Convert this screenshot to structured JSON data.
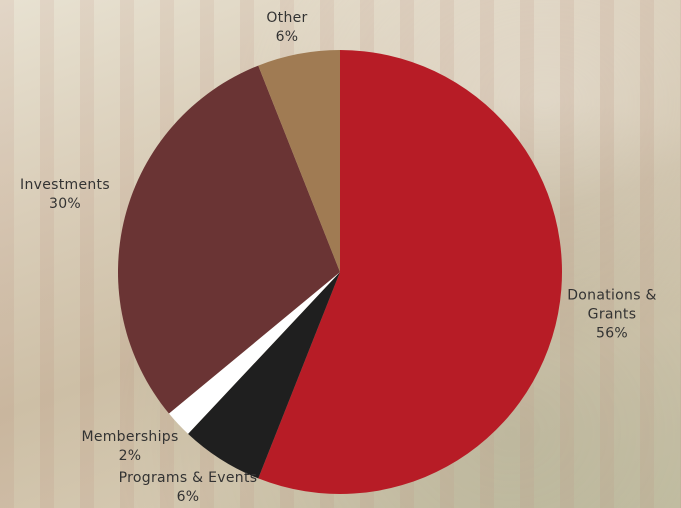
{
  "chart_data": {
    "type": "pie",
    "categories": [
      "Donations & Grants",
      "Programs & Events",
      "Memberships",
      "Investments",
      "Other"
    ],
    "values": [
      56,
      6,
      2,
      30,
      6
    ],
    "value_labels": [
      "56%",
      "6%",
      "2%",
      "30%",
      "6%"
    ],
    "colors": [
      "#b71c26",
      "#1f1f1f",
      "#ffffff",
      "#6a3434",
      "#a07b53"
    ]
  }
}
